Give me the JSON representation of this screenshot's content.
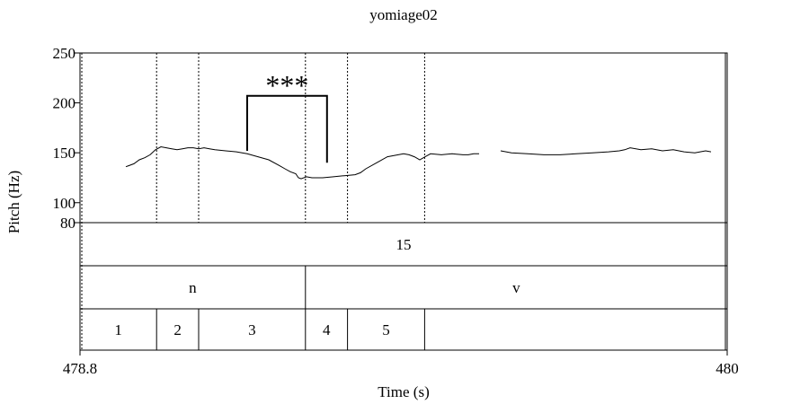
{
  "chart_data": {
    "type": "line",
    "title": "yomiage02",
    "xlabel": "Time (s)",
    "ylabel": "Pitch (Hz)",
    "xlim": [
      478.8,
      480
    ],
    "ylim": [
      80,
      250
    ],
    "y_ticks": [
      80,
      100,
      150,
      200,
      250
    ],
    "x_ticks": [
      478.8,
      480
    ],
    "x_tick_labels": [
      "478.8",
      "480"
    ],
    "series": [
      {
        "segments": [
          [
            [
              478.885,
              136
            ],
            [
              478.89,
              137
            ],
            [
              478.9,
              139
            ],
            [
              478.91,
              143
            ],
            [
              478.92,
              145
            ],
            [
              478.93,
              148
            ],
            [
              478.94,
              153
            ],
            [
              478.95,
              156
            ],
            [
              478.96,
              155
            ],
            [
              478.97,
              154
            ],
            [
              478.98,
              153
            ],
            [
              478.99,
              154
            ],
            [
              479.0,
              155
            ],
            [
              479.01,
              155
            ],
            [
              479.02,
              154
            ],
            [
              479.03,
              155
            ],
            [
              479.04,
              154
            ],
            [
              479.05,
              153
            ],
            [
              479.07,
              152
            ],
            [
              479.09,
              151
            ],
            [
              479.11,
              149
            ],
            [
              479.13,
              146
            ],
            [
              479.15,
              143
            ],
            [
              479.17,
              137
            ],
            [
              479.18,
              134
            ],
            [
              479.19,
              131
            ],
            [
              479.2,
              129
            ],
            [
              479.205,
              125
            ],
            [
              479.21,
              124
            ],
            [
              479.22,
              126
            ],
            [
              479.23,
              125
            ],
            [
              479.25,
              125
            ],
            [
              479.27,
              126
            ],
            [
              479.29,
              127
            ],
            [
              479.31,
              128
            ],
            [
              479.32,
              130
            ],
            [
              479.33,
              134
            ],
            [
              479.35,
              140
            ],
            [
              479.37,
              146
            ],
            [
              479.39,
              148
            ],
            [
              479.4,
              149
            ],
            [
              479.41,
              148
            ],
            [
              479.42,
              146
            ],
            [
              479.43,
              143
            ],
            [
              479.44,
              146
            ],
            [
              479.45,
              149
            ],
            [
              479.47,
              148
            ],
            [
              479.49,
              149
            ],
            [
              479.51,
              148
            ],
            [
              479.52,
              148
            ],
            [
              479.53,
              149
            ],
            [
              479.54,
              149
            ]
          ],
          [
            [
              479.58,
              152
            ],
            [
              479.6,
              150
            ],
            [
              479.63,
              149
            ],
            [
              479.66,
              148
            ],
            [
              479.69,
              148
            ],
            [
              479.72,
              149
            ],
            [
              479.75,
              150
            ],
            [
              479.78,
              151
            ],
            [
              479.8,
              152
            ],
            [
              479.81,
              153
            ],
            [
              479.82,
              155
            ],
            [
              479.84,
              153
            ],
            [
              479.86,
              154
            ],
            [
              479.88,
              152
            ],
            [
              479.9,
              153
            ],
            [
              479.92,
              151
            ],
            [
              479.94,
              150
            ],
            [
              479.95,
              151
            ],
            [
              479.96,
              152
            ],
            [
              479.97,
              151
            ]
          ]
        ]
      }
    ],
    "boundaries": [
      478.942,
      479.02,
      479.218,
      479.296,
      479.439
    ],
    "annotations": [
      {
        "text": "***",
        "x_start": 479.11,
        "x_end": 479.258,
        "y_left_end": 152,
        "y_right_end": 140,
        "y_bar": 207
      }
    ],
    "tiers": [
      {
        "intervals": [
          {
            "start": 478.8,
            "end": 480,
            "label": "15"
          }
        ]
      },
      {
        "intervals": [
          {
            "start": 478.8,
            "end": 479.218,
            "label": "n"
          },
          {
            "start": 479.218,
            "end": 480,
            "label": "v"
          }
        ]
      },
      {
        "intervals": [
          {
            "start": 478.8,
            "end": 478.942,
            "label": "1"
          },
          {
            "start": 478.942,
            "end": 479.02,
            "label": "2"
          },
          {
            "start": 479.02,
            "end": 479.218,
            "label": "3"
          },
          {
            "start": 479.218,
            "end": 479.296,
            "label": "4"
          },
          {
            "start": 479.296,
            "end": 479.439,
            "label": "5"
          },
          {
            "start": 479.439,
            "end": 480,
            "label": ""
          }
        ]
      }
    ],
    "grid": false,
    "legend": "none"
  }
}
